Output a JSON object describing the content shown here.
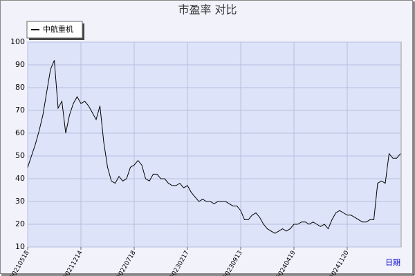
{
  "chart_data": {
    "type": "line",
    "title": "市盈率  对比",
    "x_label": "日期",
    "series": [
      {
        "name": "中航重机",
        "color": "#000000",
        "values": [
          45,
          50,
          55,
          61,
          68,
          78,
          88,
          92,
          71,
          74,
          60,
          68,
          73,
          76,
          73,
          74,
          72,
          69,
          66,
          72,
          56,
          45,
          39,
          38,
          41,
          39,
          40,
          45,
          46,
          48,
          46,
          40,
          39,
          42,
          42,
          40,
          40,
          38,
          37,
          37,
          38,
          36,
          37,
          34,
          32,
          30,
          31,
          30,
          30,
          29,
          30,
          30,
          30,
          29,
          28,
          28,
          26,
          22,
          22,
          24,
          25,
          23,
          20,
          18,
          17,
          16,
          17,
          18,
          17,
          18,
          20,
          20,
          21,
          21,
          20,
          21,
          20,
          19,
          20,
          18,
          22,
          25,
          26,
          25,
          24,
          24,
          23,
          22,
          21,
          21,
          22,
          22,
          38,
          39,
          38,
          51,
          49,
          49,
          51
        ]
      }
    ],
    "xticks": [
      {
        "value": 0,
        "label": "20210518"
      },
      {
        "value": 14,
        "label": "20211214"
      },
      {
        "value": 28,
        "label": "20220718"
      },
      {
        "value": 42,
        "label": "20230217"
      },
      {
        "value": 56,
        "label": "20230913"
      },
      {
        "value": 70,
        "label": "20240419"
      },
      {
        "value": 84,
        "label": "20241120"
      }
    ],
    "ylim": [
      10,
      100
    ],
    "yticks": [
      10,
      20,
      30,
      40,
      50,
      60,
      70,
      80,
      90,
      100
    ],
    "grid": true,
    "legend": "top-left"
  }
}
